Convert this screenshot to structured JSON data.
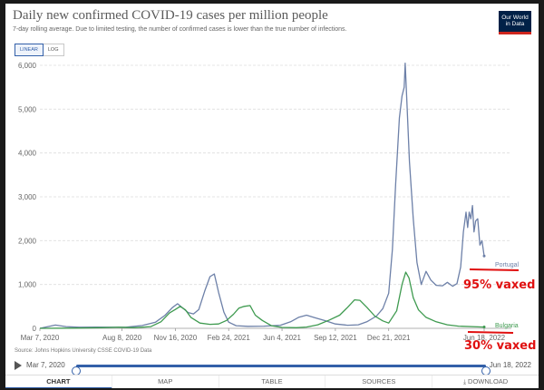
{
  "header": {
    "title": "Daily new confirmed COVID-19 cases per million people",
    "subtitle": "7-day rolling average. Due to limited testing, the number of confirmed cases is lower than the true number of infections.",
    "logo_line1": "Our World",
    "logo_line2": "in Data"
  },
  "scale_toggle": {
    "linear": "LINEAR",
    "log": "LOG",
    "active": "LINEAR"
  },
  "chart_data": {
    "type": "line",
    "title": "Daily new confirmed COVID-19 cases per million people",
    "ylim": [
      0,
      6000
    ],
    "yticks": [
      0,
      1000,
      2000,
      3000,
      4000,
      5000,
      6000
    ],
    "ytick_labels": [
      "0",
      "1,000",
      "2,000",
      "3,000",
      "4,000",
      "5,000",
      "6,000"
    ],
    "xlim": [
      "2020-03-07",
      "2022-06-18"
    ],
    "xticks": [
      "2020-03-07",
      "2020-08-08",
      "2020-11-16",
      "2021-02-24",
      "2021-06-04",
      "2021-09-12",
      "2021-12-21",
      "2022-06-18"
    ],
    "xtick_labels": [
      "Mar 7, 2020",
      "Aug 8, 2020",
      "Nov 16, 2020",
      "Feb 24, 2021",
      "Jun 4, 2021",
      "Sep 12, 2021",
      "Dec 21, 2021",
      "Jun 18, 2022"
    ],
    "grid": true,
    "series": [
      {
        "name": "Portugal",
        "color": "#6d80a8",
        "points": [
          [
            "2020-03-07",
            0
          ],
          [
            "2020-03-25",
            45
          ],
          [
            "2020-04-05",
            75
          ],
          [
            "2020-04-25",
            40
          ],
          [
            "2020-05-20",
            25
          ],
          [
            "2020-06-20",
            30
          ],
          [
            "2020-07-20",
            25
          ],
          [
            "2020-08-15",
            25
          ],
          [
            "2020-09-15",
            65
          ],
          [
            "2020-10-10",
            140
          ],
          [
            "2020-10-28",
            300
          ],
          [
            "2020-11-10",
            470
          ],
          [
            "2020-11-20",
            560
          ],
          [
            "2020-11-28",
            480
          ],
          [
            "2020-12-10",
            360
          ],
          [
            "2020-12-20",
            330
          ],
          [
            "2020-12-30",
            430
          ],
          [
            "2021-01-10",
            850
          ],
          [
            "2021-01-20",
            1180
          ],
          [
            "2021-01-28",
            1240
          ],
          [
            "2021-02-05",
            820
          ],
          [
            "2021-02-15",
            370
          ],
          [
            "2021-02-24",
            140
          ],
          [
            "2021-03-10",
            60
          ],
          [
            "2021-04-01",
            45
          ],
          [
            "2021-05-01",
            50
          ],
          [
            "2021-06-01",
            70
          ],
          [
            "2021-06-20",
            150
          ],
          [
            "2021-07-05",
            250
          ],
          [
            "2021-07-20",
            300
          ],
          [
            "2021-08-05",
            240
          ],
          [
            "2021-08-25",
            170
          ],
          [
            "2021-09-12",
            100
          ],
          [
            "2021-10-05",
            70
          ],
          [
            "2021-10-25",
            80
          ],
          [
            "2021-11-10",
            150
          ],
          [
            "2021-11-28",
            280
          ],
          [
            "2021-12-10",
            450
          ],
          [
            "2021-12-21",
            800
          ],
          [
            "2021-12-28",
            1800
          ],
          [
            "2022-01-03",
            3300
          ],
          [
            "2022-01-10",
            4800
          ],
          [
            "2022-01-15",
            5300
          ],
          [
            "2022-01-19",
            5500
          ],
          [
            "2022-01-21",
            6050
          ],
          [
            "2022-01-24",
            5200
          ],
          [
            "2022-01-29",
            3800
          ],
          [
            "2022-02-05",
            2500
          ],
          [
            "2022-02-12",
            1500
          ],
          [
            "2022-02-20",
            1000
          ],
          [
            "2022-03-01",
            1300
          ],
          [
            "2022-03-10",
            1100
          ],
          [
            "2022-03-20",
            980
          ],
          [
            "2022-04-01",
            970
          ],
          [
            "2022-04-10",
            1050
          ],
          [
            "2022-04-20",
            960
          ],
          [
            "2022-04-28",
            1020
          ],
          [
            "2022-05-05",
            1400
          ],
          [
            "2022-05-10",
            2200
          ],
          [
            "2022-05-15",
            2650
          ],
          [
            "2022-05-18",
            2300
          ],
          [
            "2022-05-21",
            2650
          ],
          [
            "2022-05-24",
            2500
          ],
          [
            "2022-05-27",
            2800
          ],
          [
            "2022-05-30",
            2200
          ],
          [
            "2022-06-02",
            2450
          ],
          [
            "2022-06-06",
            2500
          ],
          [
            "2022-06-10",
            1900
          ],
          [
            "2022-06-14",
            2000
          ],
          [
            "2022-06-18",
            1650
          ]
        ]
      },
      {
        "name": "Bulgaria",
        "color": "#3e9a4f",
        "points": [
          [
            "2020-03-07",
            0
          ],
          [
            "2020-05-01",
            5
          ],
          [
            "2020-07-01",
            15
          ],
          [
            "2020-08-01",
            25
          ],
          [
            "2020-09-01",
            15
          ],
          [
            "2020-10-01",
            40
          ],
          [
            "2020-10-20",
            150
          ],
          [
            "2020-11-05",
            350
          ],
          [
            "2020-11-16",
            430
          ],
          [
            "2020-11-25",
            500
          ],
          [
            "2020-12-05",
            420
          ],
          [
            "2020-12-15",
            250
          ],
          [
            "2021-01-01",
            120
          ],
          [
            "2021-01-20",
            90
          ],
          [
            "2021-02-05",
            100
          ],
          [
            "2021-02-20",
            180
          ],
          [
            "2021-03-05",
            320
          ],
          [
            "2021-03-15",
            460
          ],
          [
            "2021-03-25",
            500
          ],
          [
            "2021-04-05",
            520
          ],
          [
            "2021-04-15",
            300
          ],
          [
            "2021-04-28",
            180
          ],
          [
            "2021-05-15",
            60
          ],
          [
            "2021-06-04",
            20
          ],
          [
            "2021-07-01",
            15
          ],
          [
            "2021-07-20",
            30
          ],
          [
            "2021-08-10",
            80
          ],
          [
            "2021-09-01",
            190
          ],
          [
            "2021-09-20",
            300
          ],
          [
            "2021-10-05",
            480
          ],
          [
            "2021-10-18",
            650
          ],
          [
            "2021-10-28",
            640
          ],
          [
            "2021-11-10",
            480
          ],
          [
            "2021-11-25",
            280
          ],
          [
            "2021-12-10",
            170
          ],
          [
            "2021-12-21",
            120
          ],
          [
            "2022-01-05",
            400
          ],
          [
            "2022-01-15",
            1000
          ],
          [
            "2022-01-22",
            1280
          ],
          [
            "2022-01-28",
            1150
          ],
          [
            "2022-02-05",
            700
          ],
          [
            "2022-02-15",
            420
          ],
          [
            "2022-03-01",
            250
          ],
          [
            "2022-03-20",
            150
          ],
          [
            "2022-04-10",
            80
          ],
          [
            "2022-05-01",
            50
          ],
          [
            "2022-06-18",
            30
          ]
        ]
      }
    ]
  },
  "annotations": {
    "portugal_note": "95% vaxed",
    "bulgaria_note": "30% vaxed",
    "color": "#e01010"
  },
  "footer": {
    "source": "Source: Johns Hopkins University CSSE COVID-19 Data",
    "timeline_start": "Mar 7, 2020",
    "timeline_end": "Jun 18, 2022"
  },
  "tabs": [
    {
      "label": "CHART",
      "active": true
    },
    {
      "label": "MAP",
      "active": false
    },
    {
      "label": "TABLE",
      "active": false
    },
    {
      "label": "SOURCES",
      "active": false
    },
    {
      "label": "DOWNLOAD",
      "active": false,
      "icon": "download-icon"
    }
  ]
}
